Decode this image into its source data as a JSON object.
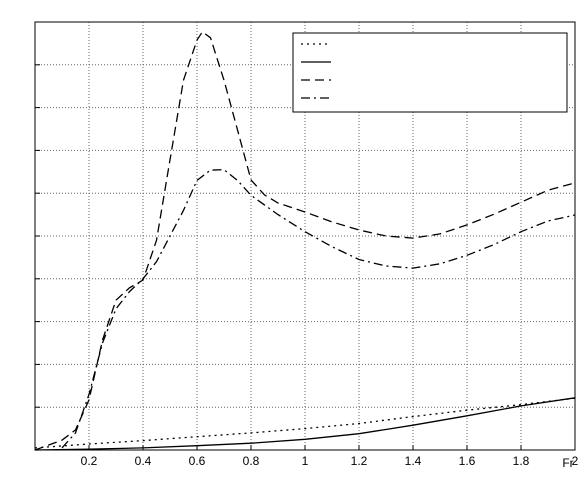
{
  "chart_data": {
    "type": "line",
    "xlabel": "Fr",
    "xlim": [
      0,
      2
    ],
    "xticks": [
      0.2,
      0.4,
      0.6,
      0.8,
      1,
      1.2,
      1.4,
      1.6,
      1.8,
      2
    ],
    "ylim": [
      0,
      10
    ],
    "yticks": [
      1,
      2,
      3,
      4,
      5,
      6,
      7,
      8,
      9
    ],
    "ytick_labels": false,
    "grid": true,
    "legend": "upper right",
    "series": [
      {
        "color": "#000000",
        "style": "dotted",
        "x": [
          0,
          0.2,
          0.4,
          0.6,
          0.8,
          1.0,
          1.2,
          1.4,
          1.6,
          1.8,
          2.0
        ],
        "values": [
          0.05,
          0.14,
          0.22,
          0.31,
          0.4,
          0.5,
          0.62,
          0.78,
          0.93,
          1.06,
          1.21
        ]
      },
      {
        "color": "#000000",
        "style": "solid",
        "x": [
          0,
          0.2,
          0.4,
          0.6,
          0.8,
          1.0,
          1.2,
          1.4,
          1.6,
          1.8,
          2.0
        ],
        "values": [
          0,
          0.02,
          0.05,
          0.1,
          0.16,
          0.25,
          0.38,
          0.58,
          0.8,
          1.03,
          1.22
        ]
      },
      {
        "color": "#000000",
        "style": "dashed",
        "x": [
          0,
          0.1,
          0.15,
          0.2,
          0.25,
          0.3,
          0.35,
          0.4,
          0.45,
          0.5,
          0.55,
          0.6,
          0.62,
          0.65,
          0.7,
          0.75,
          0.8,
          0.85,
          0.9,
          1.0,
          1.1,
          1.2,
          1.3,
          1.4,
          1.5,
          1.6,
          1.7,
          1.8,
          1.9,
          2.0
        ],
        "values": [
          0,
          0.23,
          0.47,
          1.17,
          2.57,
          3.5,
          3.79,
          3.97,
          4.9,
          6.78,
          8.64,
          9.58,
          9.77,
          9.63,
          8.64,
          7.48,
          6.31,
          5.96,
          5.77,
          5.56,
          5.33,
          5.14,
          5.0,
          4.95,
          5.05,
          5.26,
          5.51,
          5.79,
          6.07,
          6.24
        ]
      },
      {
        "color": "#000000",
        "style": "dashdot",
        "x": [
          0.1,
          0.15,
          0.2,
          0.25,
          0.3,
          0.35,
          0.4,
          0.45,
          0.5,
          0.55,
          0.6,
          0.65,
          0.7,
          0.75,
          0.8,
          0.9,
          1.0,
          1.1,
          1.2,
          1.3,
          1.4,
          1.5,
          1.6,
          1.7,
          1.8,
          1.9,
          2.0
        ],
        "values": [
          0.05,
          0.4,
          1.3,
          2.5,
          3.3,
          3.7,
          4.0,
          4.4,
          5.0,
          5.6,
          6.3,
          6.54,
          6.55,
          6.3,
          5.95,
          5.5,
          5.1,
          4.75,
          4.45,
          4.3,
          4.25,
          4.35,
          4.55,
          4.8,
          5.1,
          5.35,
          5.49
        ]
      }
    ]
  }
}
